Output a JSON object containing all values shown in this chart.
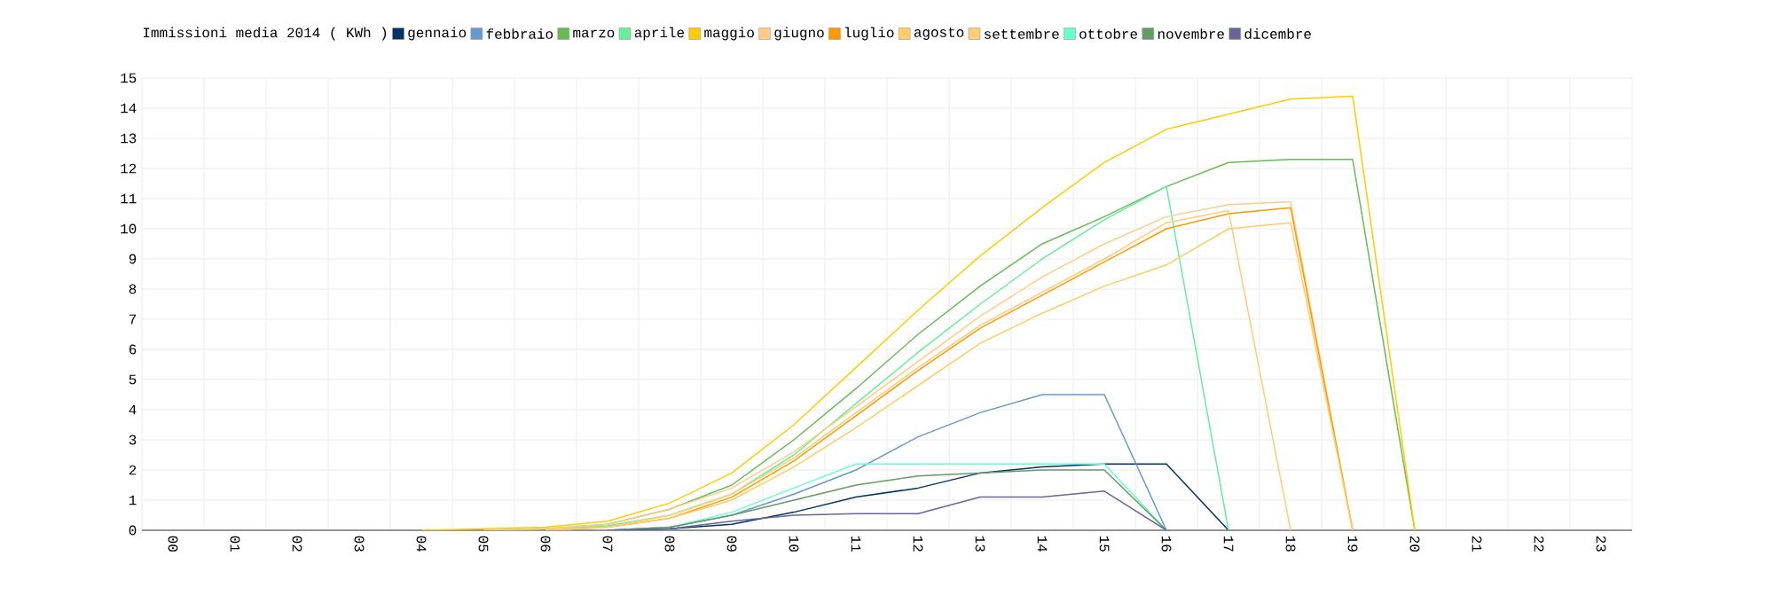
{
  "chart_data": {
    "type": "line",
    "legend_title": "Immissioni media 2014 ( KWh )",
    "legend": "top",
    "grid": true,
    "marker": "none",
    "line_style": "solid",
    "categories": [
      "00",
      "01",
      "02",
      "03",
      "04",
      "05",
      "06",
      "07",
      "08",
      "09",
      "10",
      "11",
      "12",
      "13",
      "14",
      "15",
      "16",
      "17",
      "18",
      "19",
      "20",
      "21",
      "22",
      "23"
    ],
    "ylim": [
      0,
      15
    ],
    "yticks": [
      0,
      1,
      2,
      3,
      4,
      5,
      6,
      7,
      8,
      9,
      10,
      11,
      12,
      13,
      14,
      15
    ],
    "series": [
      {
        "name": "gennaio",
        "color": "#003366",
        "values": [
          null,
          null,
          null,
          null,
          null,
          null,
          null,
          0,
          0.05,
          0.2,
          0.6,
          1.1,
          1.4,
          1.9,
          2.1,
          2.2,
          2.2,
          0,
          null,
          null,
          null,
          null,
          null,
          null
        ]
      },
      {
        "name": "febbraio",
        "color": "#6699cc",
        "values": [
          null,
          null,
          null,
          null,
          null,
          null,
          null,
          0,
          0.1,
          0.5,
          1.2,
          2.0,
          3.1,
          3.9,
          4.5,
          4.5,
          0,
          null,
          null,
          null,
          null,
          null,
          null,
          null
        ]
      },
      {
        "name": "marzo",
        "color": "#66bb55",
        "values": [
          null,
          null,
          null,
          null,
          null,
          0,
          0.05,
          0.2,
          0.7,
          1.5,
          3.0,
          4.7,
          6.5,
          8.1,
          9.5,
          10.4,
          11.4,
          12.2,
          12.3,
          12.3,
          0,
          null,
          null,
          null
        ]
      },
      {
        "name": "aprile",
        "color": "#66ee99",
        "values": [
          null,
          null,
          null,
          null,
          null,
          0,
          0.05,
          0.15,
          0.5,
          1.2,
          2.5,
          4.2,
          5.9,
          7.5,
          9.0,
          10.3,
          11.4,
          0,
          null,
          null,
          null,
          null,
          null,
          null
        ]
      },
      {
        "name": "maggio",
        "color": "#ffcc00",
        "values": [
          null,
          null,
          null,
          null,
          0,
          0.05,
          0.1,
          0.3,
          0.9,
          1.9,
          3.5,
          5.4,
          7.3,
          9.1,
          10.7,
          12.2,
          13.3,
          13.8,
          14.3,
          14.4,
          0,
          null,
          null,
          null
        ]
      },
      {
        "name": "giugno",
        "color": "#ffcc88",
        "values": [
          null,
          null,
          null,
          null,
          null,
          0,
          0.05,
          0.2,
          0.7,
          1.4,
          2.6,
          4.1,
          5.6,
          7.1,
          8.4,
          9.5,
          10.4,
          10.8,
          10.9,
          0,
          null,
          null,
          null,
          null
        ]
      },
      {
        "name": "luglio",
        "color": "#ff9900",
        "values": [
          null,
          null,
          null,
          null,
          null,
          null,
          0,
          0.1,
          0.4,
          1.1,
          2.3,
          3.8,
          5.3,
          6.7,
          7.8,
          8.9,
          10.0,
          10.5,
          10.7,
          0,
          null,
          null,
          null,
          null
        ]
      },
      {
        "name": "agosto",
        "color": "#ffcc66",
        "values": [
          null,
          null,
          null,
          null,
          null,
          null,
          0,
          0.1,
          0.4,
          1.0,
          2.1,
          3.4,
          4.8,
          6.2,
          7.2,
          8.1,
          8.8,
          10.0,
          10.2,
          0,
          null,
          null,
          null,
          null
        ]
      },
      {
        "name": "settembre",
        "color": "#ffcc77",
        "values": [
          null,
          null,
          null,
          null,
          null,
          null,
          0,
          0.1,
          0.5,
          1.2,
          2.4,
          3.9,
          5.4,
          6.8,
          7.9,
          9.0,
          10.2,
          10.6,
          0,
          null,
          null,
          null,
          null,
          null
        ]
      },
      {
        "name": "ottobre",
        "color": "#66ffcc",
        "values": [
          null,
          null,
          null,
          null,
          null,
          null,
          null,
          0,
          0.1,
          0.6,
          1.4,
          2.2,
          2.2,
          2.2,
          2.2,
          2.2,
          0,
          null,
          null,
          null,
          null,
          null,
          null,
          null
        ]
      },
      {
        "name": "novembre",
        "color": "#669966",
        "values": [
          null,
          null,
          null,
          null,
          null,
          null,
          null,
          0,
          0.1,
          0.5,
          1.0,
          1.5,
          1.8,
          1.9,
          2.0,
          2.0,
          0,
          null,
          null,
          null,
          null,
          null,
          null,
          null
        ]
      },
      {
        "name": "dicembre",
        "color": "#666699",
        "values": [
          null,
          null,
          null,
          null,
          null,
          null,
          null,
          0,
          0.05,
          0.3,
          0.5,
          0.55,
          0.55,
          1.1,
          1.1,
          1.3,
          0,
          null,
          null,
          null,
          null,
          null,
          null,
          null
        ]
      }
    ]
  }
}
